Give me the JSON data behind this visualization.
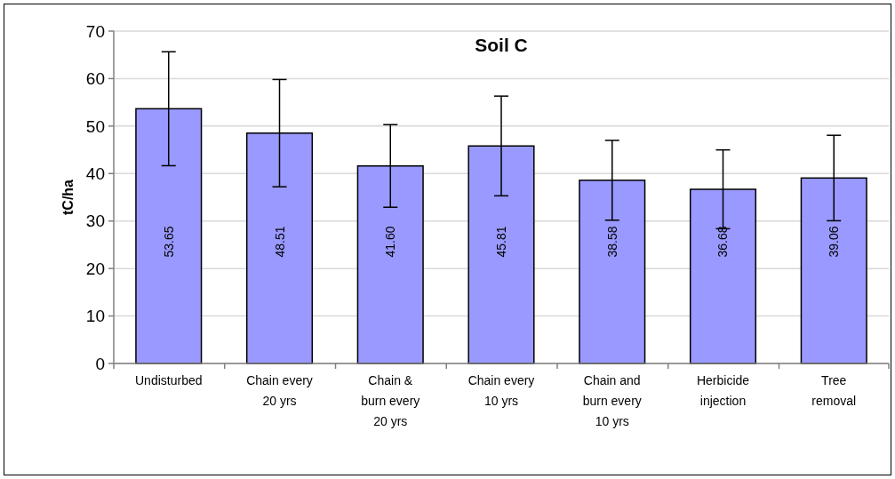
{
  "chart_data": {
    "type": "bar",
    "title": "Soil C",
    "ylabel": "tC/ha",
    "categories": [
      "Undisturbed",
      "Chain every 20 yrs",
      "Chain & burn every 20 yrs",
      "Chain every 10 yrs",
      "Chain and burn every 10 yrs",
      "Herbicide injection",
      "Tree removal"
    ],
    "values": [
      53.65,
      48.51,
      41.6,
      45.81,
      38.58,
      36.68,
      39.06
    ],
    "value_labels": [
      "53.65",
      "48.51",
      "41.60",
      "45.81",
      "38.58",
      "36.68",
      "39.06"
    ],
    "errors": [
      12.0,
      11.3,
      8.7,
      10.5,
      8.4,
      8.3,
      9.0
    ],
    "color": "#9999ff",
    "ylim": [
      0,
      70
    ],
    "yticks": [
      0,
      10,
      20,
      30,
      40,
      50,
      60,
      70
    ],
    "grid": "y"
  }
}
